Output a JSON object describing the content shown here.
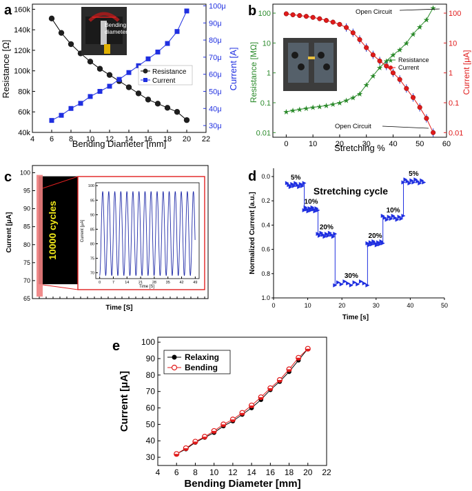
{
  "colors": {
    "black": "#111111",
    "blue": "#1f2fe0",
    "green": "#2a8a2a",
    "red": "#e01a1a",
    "navy": "#1f2aa8",
    "pink": "#e85a5a",
    "box": "#e02020",
    "yellow": "#f2ea1a"
  },
  "chart_data": [
    {
      "panel": "a",
      "type": "line",
      "x_label": "Bending Diameter [mm]",
      "y_label": "Resistance [Ω]",
      "y2_label": "Current [A]",
      "xlim": [
        4,
        22
      ],
      "ylim": [
        40000,
        165000
      ],
      "y2lim": [
        26,
        101
      ],
      "x_ticks": [
        "4",
        "6",
        "8",
        "10",
        "12",
        "14",
        "16",
        "18",
        "20",
        "22"
      ],
      "y_ticks": [
        "40k",
        "60k",
        "80k",
        "100k",
        "120k",
        "140k",
        "160k"
      ],
      "y2_ticks": [
        "30μ",
        "40μ",
        "50μ",
        "60μ",
        "70μ",
        "80μ",
        "90μ",
        "100μ"
      ],
      "inset_label": "Bending diameter",
      "series": [
        {
          "name": "Resistance",
          "axis": "left",
          "x": [
            6,
            7,
            8,
            9,
            10,
            11,
            12,
            13,
            14,
            15,
            16,
            17,
            18,
            19,
            20
          ],
          "y": [
            151000,
            137000,
            126000,
            117000,
            109000,
            102000,
            96000,
            90000,
            84000,
            78000,
            72000,
            68000,
            64000,
            60000,
            52000
          ]
        },
        {
          "name": "Current",
          "axis": "right",
          "x": [
            6,
            7,
            8,
            9,
            10,
            11,
            12,
            13,
            14,
            15,
            16,
            17,
            18,
            19,
            20
          ],
          "y": [
            33,
            36,
            40,
            43,
            47,
            50,
            53,
            57,
            61,
            65,
            69,
            73,
            78,
            85,
            97
          ]
        }
      ]
    },
    {
      "panel": "b",
      "type": "line",
      "x_label": "Stretching %",
      "y_label": "Resistance [MΩ]",
      "y2_label": "Current [μA]",
      "xlim": [
        -5,
        60
      ],
      "ylog": true,
      "ylim": [
        0.007,
        200
      ],
      "y2lim": [
        0.007,
        200
      ],
      "x_ticks": [
        "0",
        "10",
        "20",
        "30",
        "40",
        "50",
        "60"
      ],
      "y_ticks": [
        "0.01",
        "0.1",
        "1",
        "10",
        "100"
      ],
      "y2_ticks": [
        "0.01",
        "0.1",
        "1",
        "10",
        "100"
      ],
      "annotations": [
        "Open Circuit",
        "Open Circuit"
      ],
      "series": [
        {
          "name": "Resistance",
          "axis": "left",
          "x": [
            0,
            2.5,
            5,
            7.5,
            10,
            12.5,
            15,
            17.5,
            20,
            22.5,
            25,
            27.5,
            30,
            32.5,
            35,
            37.5,
            40,
            42.5,
            45,
            47.5,
            50,
            52.5,
            55
          ],
          "y": [
            0.05,
            0.055,
            0.06,
            0.065,
            0.07,
            0.075,
            0.08,
            0.09,
            0.1,
            0.12,
            0.15,
            0.2,
            0.4,
            0.8,
            1.5,
            2.5,
            4,
            6,
            10,
            20,
            35,
            60,
            150
          ]
        },
        {
          "name": "Current",
          "axis": "right",
          "x": [
            0,
            2.5,
            5,
            7.5,
            10,
            12.5,
            15,
            17.5,
            20,
            22.5,
            25,
            27.5,
            30,
            32.5,
            35,
            37.5,
            40,
            42.5,
            45,
            47.5,
            50,
            52.5,
            55
          ],
          "y": [
            95,
            88,
            83,
            78,
            72,
            65,
            57,
            50,
            42,
            33,
            22,
            13,
            7,
            4,
            2.5,
            1.7,
            1,
            0.6,
            0.3,
            0.15,
            0.07,
            0.03,
            0.01
          ]
        }
      ]
    },
    {
      "panel": "c",
      "type": "line",
      "x_label": "Time [S]",
      "y_label": "Current [μA]",
      "ylim": [
        65,
        102
      ],
      "y_ticks": [
        "65",
        "70",
        "75",
        "80",
        "85",
        "90",
        "95",
        "100"
      ],
      "band_label": "10000 cycles",
      "band_range": [
        69,
        99
      ],
      "inset": {
        "x_label": "Time [S]",
        "y_label": "Current [μA]",
        "xlim": [
          -2,
          51
        ],
        "ylim": [
          68,
          101
        ],
        "x_ticks": [
          "0",
          "7",
          "14",
          "21",
          "28",
          "35",
          "42",
          "49"
        ],
        "y_ticks": [
          "70",
          "75",
          "80",
          "85",
          "90",
          "95",
          "100"
        ],
        "min": 69,
        "max": 98,
        "period": 3.1,
        "duration": 49
      }
    },
    {
      "panel": "d",
      "type": "line",
      "x_label": "Time [s]",
      "y_label": "Normalized Current  [a.u.]",
      "title": "Stretching cycle",
      "xlim": [
        0,
        50
      ],
      "ylim": [
        0,
        1
      ],
      "y_reversed": true,
      "x_ticks": [
        "0",
        "10",
        "20",
        "30",
        "40",
        "50"
      ],
      "y_ticks": [
        "0.0",
        "0.2",
        "0.4",
        "0.6",
        "0.8",
        "1.0"
      ],
      "steps": [
        {
          "label": "5%",
          "x0": 4,
          "x1": 9,
          "y": 0.07
        },
        {
          "label": "10%",
          "x0": 9,
          "x1": 13,
          "y": 0.27
        },
        {
          "label": "20%",
          "x0": 13,
          "x1": 18,
          "y": 0.48
        },
        {
          "label": "30%",
          "x0": 18,
          "x1": 27.5,
          "y": 0.88
        },
        {
          "label": "20%",
          "x0": 27.5,
          "x1": 32,
          "y": 0.55
        },
        {
          "label": "10%",
          "x0": 32,
          "x1": 38,
          "y": 0.34
        },
        {
          "label": "5%",
          "x0": 38,
          "x1": 44,
          "y": 0.04
        }
      ]
    },
    {
      "panel": "e",
      "type": "line",
      "x_label": "Bending Diameter [mm]",
      "y_label": "Current [μA]",
      "xlim": [
        4,
        22
      ],
      "ylim": [
        25,
        103
      ],
      "x_ticks": [
        "4",
        "6",
        "8",
        "10",
        "12",
        "14",
        "16",
        "18",
        "20",
        "22"
      ],
      "y_ticks": [
        "30",
        "40",
        "50",
        "60",
        "70",
        "80",
        "90",
        "100"
      ],
      "series": [
        {
          "name": "Relaxing",
          "x": [
            6,
            7,
            8,
            9,
            10,
            11,
            12,
            13,
            14,
            15,
            16,
            17,
            18,
            19,
            20
          ],
          "y": [
            32,
            35,
            39,
            42,
            45,
            49,
            52,
            56,
            60,
            65,
            71,
            76,
            82,
            89,
            96
          ]
        },
        {
          "name": "Bending",
          "x": [
            6,
            7,
            8,
            9,
            10,
            11,
            12,
            13,
            14,
            15,
            16,
            17,
            18,
            19,
            20
          ],
          "y": [
            32,
            35.5,
            39.5,
            42.5,
            46,
            50,
            53,
            57,
            61.5,
            66.5,
            72,
            77,
            83.5,
            90.5,
            96
          ]
        }
      ]
    }
  ]
}
